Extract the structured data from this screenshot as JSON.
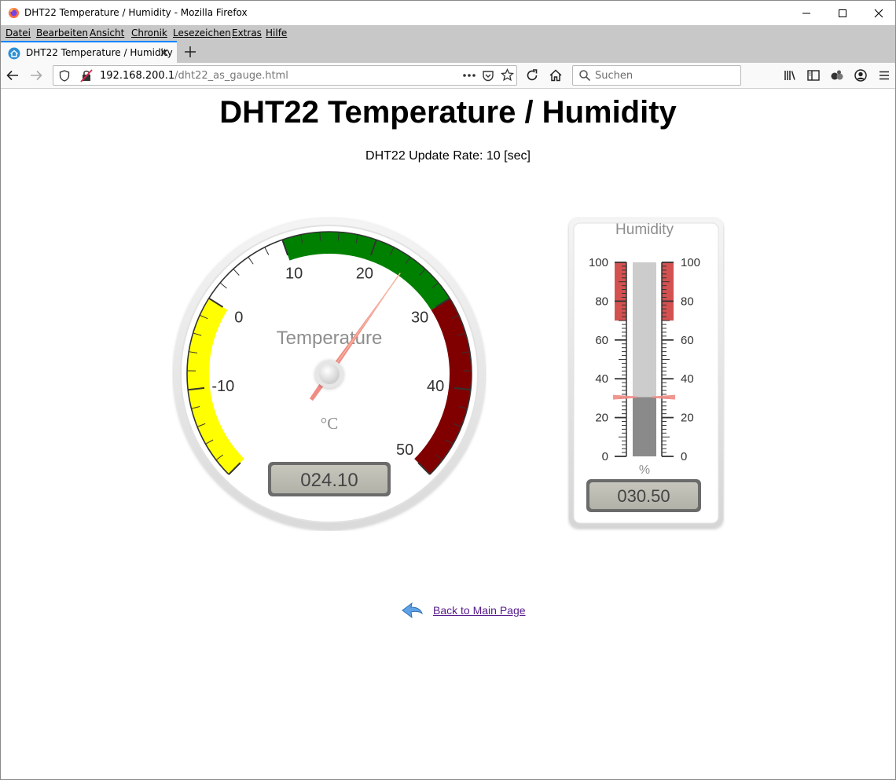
{
  "window": {
    "title": "DHT22 Temperature / Humidity - Mozilla Firefox"
  },
  "menu": [
    "Datei",
    "Bearbeiten",
    "Ansicht",
    "Chronik",
    "Lesezeichen",
    "Extras",
    "Hilfe"
  ],
  "tab": {
    "title": "DHT22 Temperature / Humidity"
  },
  "address": {
    "host": "192.168.200.1",
    "path": "/dht22_as_gauge.html"
  },
  "search": {
    "placeholder": "Suchen"
  },
  "page": {
    "title": "DHT22 Temperature / Humidity",
    "update_rate": "DHT22 Update Rate: 10 [sec]",
    "back_link": "Back to Main Page"
  },
  "temperature_gauge": {
    "title": "Temperature",
    "units": "°C",
    "min": -20,
    "max": 50,
    "major_ticks": [
      -10,
      0,
      10,
      20,
      30,
      40,
      50
    ],
    "value": 24.1,
    "display": "024.10",
    "highlights": [
      {
        "from": -20,
        "to": 0,
        "color": "#ffff00"
      },
      {
        "from": 10,
        "to": 30,
        "color": "#008000"
      },
      {
        "from": 30,
        "to": 50,
        "color": "#800000"
      }
    ]
  },
  "humidity_gauge": {
    "title": "Humidity",
    "units": "%",
    "min": 0,
    "max": 100,
    "major_ticks": [
      0,
      20,
      40,
      60,
      80,
      100
    ],
    "value": 30.5,
    "display": "030.50",
    "highlights": [
      {
        "from": 70,
        "to": 100,
        "color": "#cc3333"
      }
    ]
  }
}
